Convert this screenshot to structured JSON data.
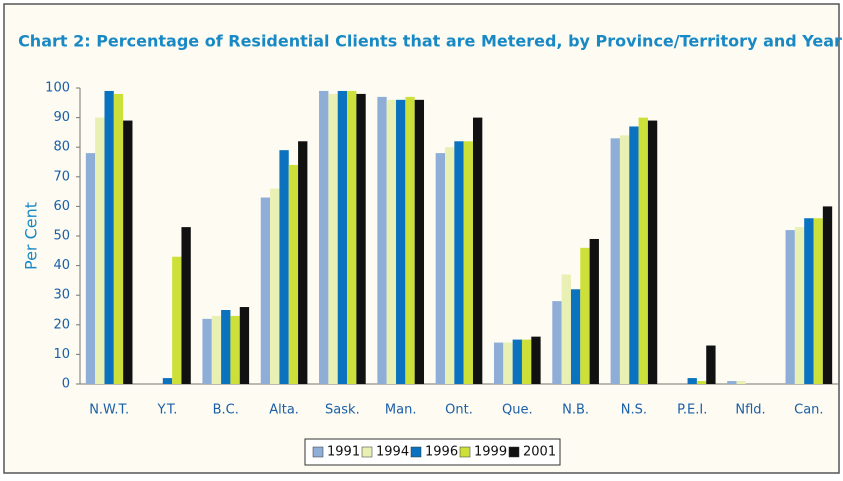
{
  "chart_data": {
    "type": "bar",
    "title": "Chart 2:  Percentage of Residential Clients that are Metered, by Province/Territory and Year",
    "y_label": "Per Cent",
    "categories": [
      "N.W.T.",
      "Y.T.",
      "B.C.",
      "Alta.",
      "Sask.",
      "Man.",
      "Ont.",
      "Que.",
      "N.B.",
      "N.S.",
      "P.E.I.",
      "Nfld.",
      "Can."
    ],
    "series": [
      {
        "name": "1991",
        "color": "#8eaed8",
        "values": [
          78,
          0,
          22,
          63,
          99,
          97,
          78,
          14,
          28,
          83,
          0,
          1,
          52
        ]
      },
      {
        "name": "1994",
        "color": "#e9f0b4",
        "values": [
          90,
          0,
          23,
          66,
          98,
          96,
          80,
          14,
          37,
          84,
          0,
          1,
          53
        ]
      },
      {
        "name": "1996",
        "color": "#0b72bf",
        "values": [
          99,
          2,
          25,
          79,
          99,
          96,
          82,
          15,
          32,
          87,
          2,
          0,
          56
        ]
      },
      {
        "name": "1999",
        "color": "#cde03a",
        "values": [
          98,
          43,
          23,
          74,
          99,
          97,
          82,
          15,
          46,
          90,
          1,
          0,
          56
        ]
      },
      {
        "name": "2001",
        "color": "#111111",
        "values": [
          89,
          53,
          26,
          82,
          98,
          96,
          90,
          16,
          49,
          89,
          13,
          0,
          60
        ]
      }
    ],
    "ylim": [
      0,
      100
    ],
    "yticks": [
      0,
      10,
      20,
      30,
      40,
      50,
      60,
      70,
      80,
      90,
      100
    ],
    "grid": false,
    "legend": "bottom"
  }
}
